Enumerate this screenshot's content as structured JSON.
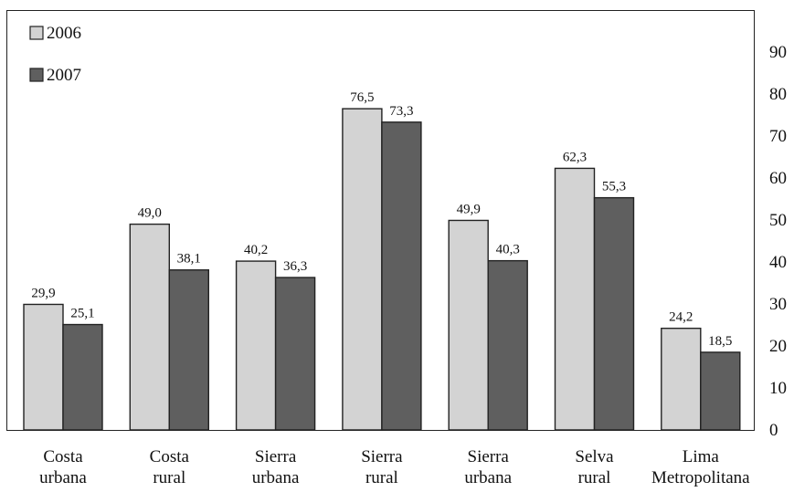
{
  "chart_data": {
    "type": "bar",
    "categories": [
      [
        "Costa",
        "urbana"
      ],
      [
        "Costa",
        "rural"
      ],
      [
        "Sierra",
        "urbana"
      ],
      [
        "Sierra",
        "rural"
      ],
      [
        "Sierra",
        "urbana"
      ],
      [
        "Selva",
        "rural"
      ],
      [
        "Lima",
        "Metropolitana"
      ]
    ],
    "series": [
      {
        "name": "2006",
        "color": "#d3d3d3",
        "values": [
          29.9,
          49.0,
          40.2,
          76.5,
          49.9,
          62.3,
          24.2
        ],
        "labels": [
          "29,9",
          "49,0",
          "40,2",
          "76,5",
          "49,9",
          "62,3",
          "24,2"
        ]
      },
      {
        "name": "2007",
        "color": "#5f5f5f",
        "values": [
          25.1,
          38.1,
          36.3,
          73.3,
          40.3,
          55.3,
          18.5
        ],
        "labels": [
          "25,1",
          "38,1",
          "36,3",
          "73,3",
          "40,3",
          "55,3",
          "18,5"
        ]
      }
    ],
    "yaxis": {
      "position": "right",
      "ylim": [
        0,
        100
      ],
      "ticks": [
        0,
        10,
        20,
        30,
        40,
        50,
        60,
        70,
        80,
        90
      ]
    },
    "legend": "top-left",
    "grid": false
  }
}
